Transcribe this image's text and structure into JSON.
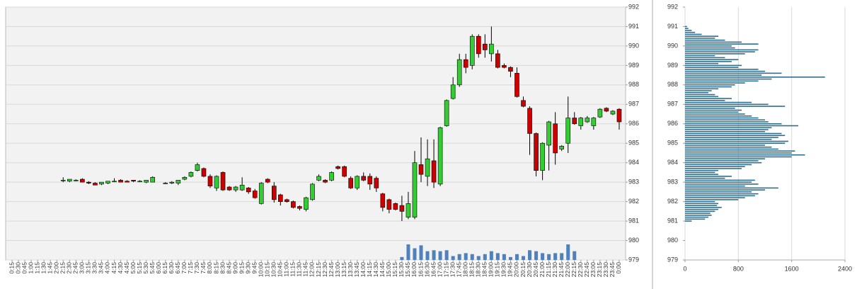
{
  "chart_data": [
    {
      "type": "candlestick",
      "categories": [
        "0:15",
        "0:30",
        "0:45",
        "1:00",
        "1:15",
        "1:30",
        "1:45",
        "2:00",
        "2:15",
        "2:30",
        "2:45",
        "3:00",
        "3:15",
        "3:30",
        "3:45",
        "4:00",
        "4:15",
        "4:30",
        "4:45",
        "5:00",
        "5:15",
        "5:30",
        "5:45",
        "6:00",
        "6:15",
        "6:30",
        "6:45",
        "7:00",
        "7:15",
        "7:30",
        "7:45",
        "8:00",
        "8:15",
        "8:30",
        "8:45",
        "9:00",
        "9:15",
        "9:30",
        "9:45",
        "10:00",
        "10:15",
        "10:30",
        "10:45",
        "11:00",
        "11:15",
        "11:30",
        "11:45",
        "12:00",
        "12:15",
        "12:30",
        "12:45",
        "13:00",
        "13:15",
        "13:30",
        "13:45",
        "14:00",
        "14:15",
        "14:30",
        "14:45",
        "15:00",
        "15:15",
        "15:30",
        "15:45",
        "16:00",
        "16:15",
        "16:30",
        "16:45",
        "17:00",
        "17:15",
        "17:30",
        "17:45",
        "18:00",
        "18:15",
        "18:30",
        "18:45",
        "19:00",
        "19:15",
        "19:30",
        "19:45",
        "20:00",
        "20:15",
        "20:30",
        "20:45",
        "21:00",
        "21:15",
        "21:30",
        "21:45",
        "22:00",
        "22:15",
        "22:30",
        "22:45",
        "23:00",
        "23:15",
        "23:30",
        "23:45",
        "0:00"
      ],
      "open": [
        null,
        null,
        null,
        null,
        null,
        null,
        null,
        null,
        983.1,
        983.05,
        983.1,
        983.15,
        983.0,
        982.95,
        982.9,
        982.95,
        983.05,
        983.1,
        983.05,
        983.1,
        983.05,
        983.0,
        983.0,
        null,
        982.95,
        982.95,
        982.95,
        983.15,
        983.3,
        983.6,
        983.7,
        983.3,
        982.7,
        983.5,
        982.75,
        982.6,
        982.6,
        982.7,
        982.55,
        981.9,
        983.15,
        982.8,
        982.35,
        982.1,
        982.0,
        981.75,
        981.6,
        982.1,
        983.1,
        983.1,
        983.1,
        983.8,
        983.8,
        983.2,
        982.7,
        983.3,
        983.3,
        983.2,
        982.4,
        982.1,
        981.9,
        981.8,
        981.2,
        981.2,
        983.9,
        983.3,
        984.1,
        982.9,
        985.9,
        987.3,
        988.0,
        989.3,
        989.0,
        990.5,
        990.1,
        989.6,
        989.6,
        989.0,
        988.9,
        988.6,
        987.2,
        986.8,
        985.5,
        983.6,
        984.9,
        986.0,
        984.7,
        985.0,
        986.3,
        985.9,
        986.1,
        985.9,
        986.35,
        986.8,
        986.5,
        986.75
      ],
      "high": [
        null,
        null,
        null,
        null,
        null,
        null,
        null,
        null,
        983.25,
        983.15,
        983.15,
        983.2,
        983.05,
        983.0,
        983.0,
        983.05,
        983.2,
        983.15,
        983.1,
        983.1,
        983.1,
        983.1,
        983.3,
        null,
        983.0,
        983.05,
        983.1,
        983.3,
        983.55,
        984.0,
        983.75,
        983.4,
        983.35,
        983.55,
        982.8,
        982.8,
        983.25,
        982.75,
        982.65,
        983.0,
        983.2,
        983.0,
        982.4,
        982.15,
        982.05,
        981.8,
        982.25,
        982.95,
        983.4,
        983.15,
        983.55,
        983.85,
        983.85,
        983.3,
        983.35,
        983.5,
        983.45,
        983.3,
        982.45,
        982.15,
        981.95,
        982.3,
        982.5,
        984.6,
        985.3,
        985.2,
        985.2,
        985.85,
        987.25,
        988.4,
        989.6,
        989.6,
        990.6,
        990.6,
        990.6,
        991.0,
        989.8,
        989.1,
        988.95,
        988.9,
        987.4,
        986.9,
        985.55,
        985.05,
        986.15,
        986.6,
        984.9,
        987.4,
        986.6,
        986.35,
        986.4,
        986.35,
        986.8,
        986.85,
        986.7,
        986.8
      ],
      "low": [
        null,
        null,
        null,
        null,
        null,
        null,
        null,
        null,
        983.0,
        983.0,
        983.05,
        983.0,
        982.9,
        982.85,
        982.85,
        982.9,
        983.0,
        983.0,
        983.0,
        983.0,
        983.0,
        982.95,
        983.0,
        null,
        982.9,
        982.9,
        982.85,
        983.1,
        983.25,
        983.55,
        983.25,
        982.7,
        982.55,
        982.55,
        982.55,
        982.5,
        982.55,
        982.4,
        982.15,
        981.85,
        982.95,
        981.95,
        981.8,
        981.95,
        981.65,
        981.55,
        981.5,
        982.05,
        983.05,
        982.95,
        983.05,
        983.65,
        983.25,
        982.65,
        982.6,
        983.05,
        982.6,
        982.5,
        981.5,
        981.4,
        981.55,
        981.0,
        981.1,
        981.1,
        983.0,
        982.8,
        982.7,
        982.8,
        985.85,
        987.25,
        987.9,
        988.6,
        988.8,
        989.4,
        989.4,
        989.2,
        988.85,
        988.85,
        988.4,
        987.35,
        986.85,
        984.4,
        983.3,
        983.1,
        983.6,
        983.9,
        984.6,
        984.5,
        985.95,
        985.7,
        986.05,
        985.7,
        986.3,
        986.6,
        986.45,
        985.7
      ],
      "close": [
        null,
        null,
        null,
        null,
        null,
        null,
        null,
        null,
        983.1,
        983.15,
        983.1,
        983.0,
        982.95,
        982.85,
        983.0,
        983.05,
        983.05,
        983.0,
        983.0,
        983.05,
        983.05,
        983.1,
        983.25,
        null,
        982.95,
        983.0,
        983.1,
        983.25,
        983.5,
        983.9,
        983.3,
        982.8,
        983.3,
        982.6,
        982.6,
        982.75,
        982.85,
        982.5,
        982.2,
        982.95,
        983.0,
        982.1,
        982.0,
        982.0,
        981.7,
        981.65,
        982.2,
        982.9,
        983.3,
        983.0,
        983.5,
        983.7,
        983.3,
        982.7,
        983.3,
        983.1,
        982.9,
        982.7,
        981.7,
        981.6,
        981.6,
        981.5,
        981.9,
        984.0,
        983.4,
        984.2,
        983.0,
        985.8,
        987.2,
        988.0,
        989.3,
        988.9,
        990.5,
        989.6,
        989.8,
        990.1,
        988.9,
        988.9,
        988.7,
        987.4,
        986.9,
        985.5,
        983.6,
        985.0,
        986.1,
        984.5,
        984.85,
        986.3,
        986.0,
        986.3,
        986.3,
        986.3,
        986.75,
        986.65,
        986.65,
        986.1
      ],
      "volume": [
        null,
        null,
        null,
        null,
        null,
        null,
        null,
        null,
        null,
        null,
        null,
        null,
        null,
        null,
        null,
        null,
        null,
        null,
        null,
        null,
        null,
        null,
        null,
        null,
        null,
        null,
        null,
        null,
        null,
        null,
        null,
        null,
        null,
        null,
        null,
        null,
        null,
        null,
        null,
        null,
        null,
        null,
        null,
        null,
        null,
        null,
        null,
        null,
        null,
        null,
        null,
        null,
        null,
        null,
        null,
        null,
        null,
        null,
        null,
        null,
        null,
        150,
        800,
        600,
        750,
        450,
        500,
        450,
        500,
        200,
        300,
        350,
        300,
        200,
        300,
        450,
        350,
        300,
        150,
        300,
        200,
        500,
        450,
        350,
        300,
        350,
        350,
        800,
        450,
        null,
        null,
        null,
        null,
        null,
        null,
        null
      ],
      "up_color": "#33cc33",
      "down_color": "#cc0000",
      "volume_color": "#4f81bd",
      "ylim": [
        979,
        992
      ],
      "yticks": [
        979,
        980,
        981,
        982,
        983,
        984,
        985,
        986,
        987,
        988,
        989,
        990,
        991,
        992
      ],
      "grid": true
    },
    {
      "type": "hbar",
      "color": "#2e6e8e",
      "y": [
        981.0,
        981.1,
        981.2,
        981.3,
        981.4,
        981.5,
        981.6,
        981.7,
        981.8,
        981.9,
        982.0,
        982.1,
        982.2,
        982.3,
        982.4,
        982.5,
        982.6,
        982.7,
        982.8,
        982.9,
        983.0,
        983.1,
        983.2,
        983.3,
        983.4,
        983.5,
        983.6,
        983.7,
        983.8,
        983.9,
        984.0,
        984.1,
        984.2,
        984.3,
        984.4,
        984.5,
        984.6,
        984.7,
        984.8,
        984.9,
        985.0,
        985.1,
        985.2,
        985.3,
        985.4,
        985.5,
        985.6,
        985.7,
        985.8,
        985.9,
        986.0,
        986.1,
        986.2,
        986.3,
        986.4,
        986.5,
        986.6,
        986.7,
        986.8,
        986.9,
        987.0,
        987.1,
        987.2,
        987.3,
        987.4,
        987.5,
        987.6,
        987.7,
        987.8,
        987.9,
        988.0,
        988.1,
        988.2,
        988.3,
        988.4,
        988.5,
        988.6,
        988.7,
        988.8,
        988.9,
        989.0,
        989.1,
        989.2,
        989.3,
        989.4,
        989.5,
        989.6,
        989.7,
        989.8,
        989.9,
        990.0,
        990.1,
        990.2,
        990.3,
        990.4,
        990.5,
        990.6,
        990.7,
        990.8,
        990.9,
        991.0
      ],
      "values": [
        100,
        300,
        350,
        400,
        380,
        450,
        500,
        550,
        480,
        500,
        450,
        800,
        900,
        1050,
        1100,
        1000,
        1200,
        1400,
        900,
        1100,
        1000,
        1050,
        600,
        700,
        500,
        450,
        500,
        850,
        900,
        1000,
        1150,
        1100,
        1200,
        1600,
        1800,
        1600,
        1650,
        1400,
        1300,
        1200,
        1500,
        1550,
        1300,
        1400,
        1500,
        1450,
        1200,
        1250,
        1300,
        1700,
        1450,
        1250,
        1200,
        1100,
        1000,
        900,
        800,
        850,
        750,
        1500,
        1250,
        1000,
        600,
        700,
        500,
        450,
        350,
        400,
        500,
        700,
        750,
        900,
        1100,
        1300,
        2100,
        1150,
        1450,
        1200,
        1100,
        800,
        850,
        500,
        700,
        800,
        600,
        450,
        900,
        1050,
        1100,
        750,
        700,
        1100,
        850,
        600,
        450,
        500,
        250,
        150,
        100,
        50,
        30
      ],
      "xlim": [
        0,
        2400
      ],
      "xticks": [
        0,
        800,
        1600,
        2400
      ],
      "ylim": [
        979,
        992
      ],
      "yticks": [
        979,
        980,
        981,
        982,
        983,
        984,
        985,
        986,
        987,
        988,
        989,
        990,
        991,
        992
      ],
      "grid": true
    }
  ]
}
